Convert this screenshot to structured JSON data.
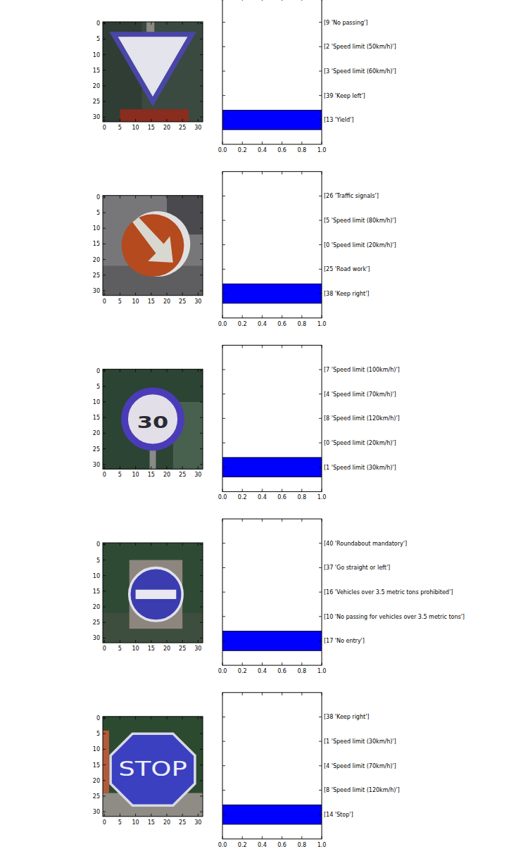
{
  "chart_data": [
    {
      "type": "image",
      "xlim": [
        -0.5,
        31.5
      ],
      "ylim": [
        31.5,
        -0.5
      ],
      "xticks": [
        0,
        5,
        10,
        15,
        20,
        25,
        30
      ],
      "yticks": [
        0,
        5,
        10,
        15,
        20,
        25,
        30
      ]
    },
    {
      "type": "bar",
      "orientation": "horizontal",
      "categories": [
        "[9 'No passing']",
        "[2 'Speed limit (50km/h)']",
        "[3 'Speed limit (60km/h)']",
        "[39 'Keep left']",
        "[13 'Yield']"
      ],
      "values": [
        0,
        0,
        0,
        0,
        1.0
      ],
      "color": "#0000ff",
      "xlim": [
        0,
        1
      ],
      "xticks": [
        {
          "value": 0,
          "label": "0.0"
        },
        0.2,
        0.4,
        0.6,
        0.8,
        {
          "value": 1,
          "label": "1.0"
        }
      ]
    },
    {
      "type": "image",
      "xlim": [
        -0.5,
        31.5
      ],
      "ylim": [
        31.5,
        -0.5
      ],
      "xticks": [
        0,
        5,
        10,
        15,
        20,
        25,
        30
      ],
      "yticks": [
        0,
        5,
        10,
        15,
        20,
        25,
        30
      ]
    },
    {
      "type": "bar",
      "orientation": "horizontal",
      "categories": [
        "[26 'Traffic signals']",
        "[5 'Speed limit (80km/h)']",
        "[0 'Speed limit (20km/h)']",
        "[25 'Road work']",
        "[38 'Keep right']"
      ],
      "values": [
        0,
        0,
        0,
        0,
        1.0
      ],
      "color": "#0000ff",
      "xlim": [
        0,
        1
      ],
      "xticks": [
        {
          "value": 0,
          "label": "0.0"
        },
        0.2,
        0.4,
        0.6,
        0.8,
        {
          "value": 1,
          "label": "1.0"
        }
      ]
    },
    {
      "type": "image",
      "xlim": [
        -0.5,
        31.5
      ],
      "ylim": [
        31.5,
        -0.5
      ],
      "xticks": [
        0,
        5,
        10,
        15,
        20,
        25,
        30
      ],
      "yticks": [
        0,
        5,
        10,
        15,
        20,
        25,
        30
      ],
      "annotations": [
        "30"
      ]
    },
    {
      "type": "bar",
      "orientation": "horizontal",
      "categories": [
        "[7 'Speed limit (100km/h)']",
        "[4 'Speed limit (70km/h)']",
        "[8 'Speed limit (120km/h)']",
        "[0 'Speed limit (20km/h)']",
        "[1 'Speed limit (30km/h)']"
      ],
      "values": [
        0,
        0,
        0,
        0,
        1.0
      ],
      "color": "#0000ff",
      "xlim": [
        0,
        1
      ],
      "xticks": [
        {
          "value": 0,
          "label": "0.0"
        },
        0.2,
        0.4,
        0.6,
        0.8,
        {
          "value": 1,
          "label": "1.0"
        }
      ]
    },
    {
      "type": "image",
      "xlim": [
        -0.5,
        31.5
      ],
      "ylim": [
        31.5,
        -0.5
      ],
      "xticks": [
        0,
        5,
        10,
        15,
        20,
        25,
        30
      ],
      "yticks": [
        0,
        5,
        10,
        15,
        20,
        25,
        30
      ]
    },
    {
      "type": "bar",
      "orientation": "horizontal",
      "categories": [
        "[40 'Roundabout mandatory']",
        "[37 'Go straight or left']",
        "[16 'Vehicles over 3.5 metric tons prohibited']",
        "[10 'No passing for vehicles over 3.5 metric tons']",
        "[17 'No entry']"
      ],
      "values": [
        0,
        0,
        0,
        0,
        1.0
      ],
      "color": "#0000ff",
      "xlim": [
        0,
        1
      ],
      "xticks": [
        {
          "value": 0,
          "label": "0.0"
        },
        0.2,
        0.4,
        0.6,
        0.8,
        {
          "value": 1,
          "label": "1.0"
        }
      ]
    },
    {
      "type": "image",
      "xlim": [
        -0.5,
        31.5
      ],
      "ylim": [
        31.5,
        -0.5
      ],
      "xticks": [
        0,
        5,
        10,
        15,
        20,
        25,
        30
      ],
      "yticks": [
        0,
        5,
        10,
        15,
        20,
        25,
        30
      ],
      "annotations": [
        "STOP"
      ]
    },
    {
      "type": "bar",
      "orientation": "horizontal",
      "categories": [
        "[38 'Keep right']",
        "[1 'Speed limit (30km/h)']",
        "[4 'Speed limit (70km/h)']",
        "[8 'Speed limit (120km/h)']",
        "[14 'Stop']"
      ],
      "values": [
        0,
        0,
        0,
        0,
        1.0
      ],
      "color": "#0000ff",
      "xlim": [
        0,
        1
      ],
      "xticks": [
        {
          "value": 0,
          "label": "0.0"
        },
        0.2,
        0.4,
        0.6,
        0.8,
        {
          "value": 1,
          "label": "1.0"
        }
      ]
    }
  ]
}
